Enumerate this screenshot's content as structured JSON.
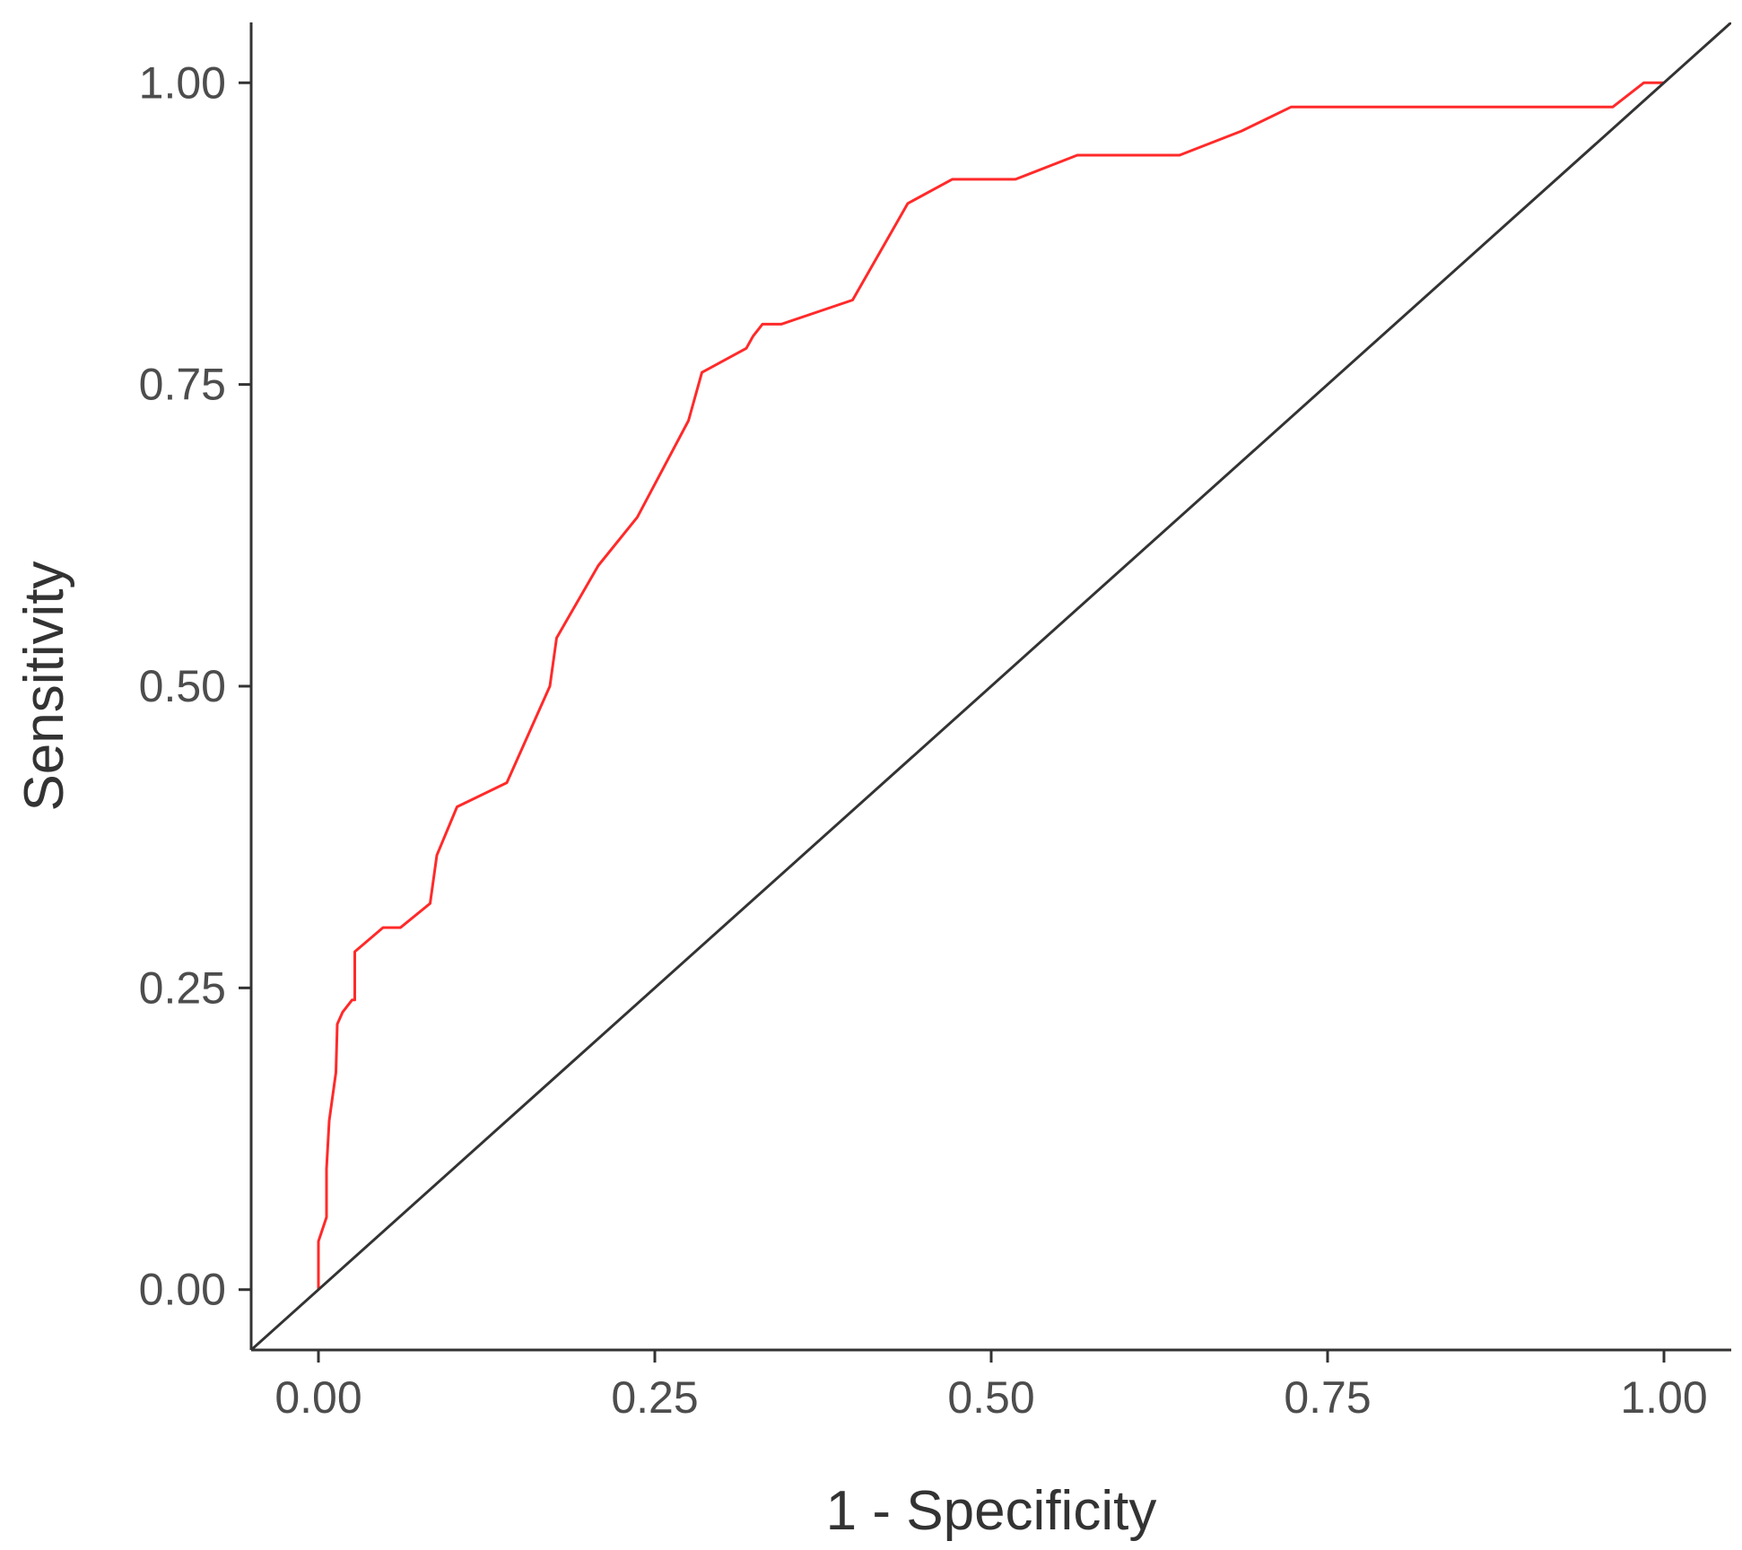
{
  "chart_data": {
    "type": "line",
    "title": "",
    "xlabel": "1 - Specificity",
    "ylabel": "Sensitivity",
    "xlim": [
      -0.05,
      1.05
    ],
    "ylim": [
      -0.05,
      1.05
    ],
    "x_ticks": [
      "0.00",
      "0.25",
      "0.50",
      "0.75",
      "1.00"
    ],
    "y_ticks": [
      "0.00",
      "0.25",
      "0.50",
      "0.75",
      "1.00"
    ],
    "grid": false,
    "legend": "none",
    "series": [
      {
        "color": "#ff2a2a",
        "x": [
          0.0,
          0.0,
          0.006,
          0.006,
          0.008,
          0.013,
          0.014,
          0.018,
          0.025,
          0.027,
          0.027,
          0.048,
          0.061,
          0.083,
          0.088,
          0.103,
          0.14,
          0.172,
          0.177,
          0.208,
          0.237,
          0.275,
          0.285,
          0.318,
          0.323,
          0.33,
          0.344,
          0.397,
          0.438,
          0.471,
          0.518,
          0.564,
          0.64,
          0.686,
          0.723,
          0.962,
          0.985,
          1.0
        ],
        "y": [
          0.0,
          0.04,
          0.06,
          0.1,
          0.14,
          0.18,
          0.22,
          0.23,
          0.24,
          0.24,
          0.28,
          0.3,
          0.3,
          0.32,
          0.36,
          0.4,
          0.42,
          0.5,
          0.54,
          0.6,
          0.64,
          0.72,
          0.76,
          0.78,
          0.79,
          0.8,
          0.8,
          0.82,
          0.9,
          0.92,
          0.92,
          0.94,
          0.94,
          0.96,
          0.98,
          0.98,
          1.0,
          1.0
        ]
      },
      {
        "color": "#333333",
        "x": [
          -0.05,
          1.05
        ],
        "y": [
          -0.05,
          1.05
        ]
      }
    ]
  }
}
